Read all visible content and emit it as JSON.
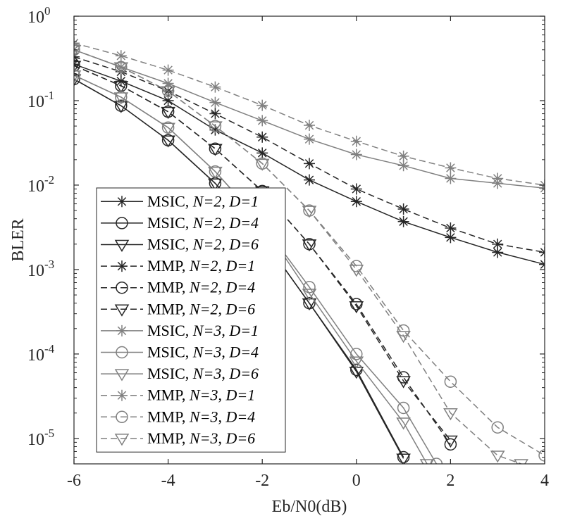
{
  "chart_data": {
    "type": "line",
    "xlabel": "Eb/N0(dB)",
    "ylabel": "BLER",
    "xlim": [
      -6,
      4
    ],
    "ylim": [
      5e-06,
      1
    ],
    "yscale": "log",
    "grid": false,
    "legend_placement": "left-center",
    "x_ticks": [
      {
        "v": -6,
        "label": "-6"
      },
      {
        "v": -4,
        "label": "-4"
      },
      {
        "v": -2,
        "label": "-2"
      },
      {
        "v": 0,
        "label": "0"
      },
      {
        "v": 2,
        "label": "2"
      },
      {
        "v": 4,
        "label": "4"
      }
    ],
    "y_ticks": [
      {
        "v": 1,
        "base": "10",
        "exp": "0"
      },
      {
        "v": 0.1,
        "base": "10",
        "exp": "-1"
      },
      {
        "v": 0.01,
        "base": "10",
        "exp": "-2"
      },
      {
        "v": 0.001,
        "base": "10",
        "exp": "-3"
      },
      {
        "v": 0.0001,
        "base": "10",
        "exp": "-4"
      },
      {
        "v": 1e-05,
        "base": "10",
        "exp": "-5"
      }
    ],
    "series": [
      {
        "name": "MSIC, N=2, D=1",
        "prefix": "MSIC, ",
        "n": "N=2",
        "d": "D=1",
        "color": "#262626",
        "dash": "solid",
        "marker": "asterisk",
        "x": [
          -6,
          -5,
          -4,
          -3,
          -2,
          -1,
          0,
          1,
          2,
          3,
          4
        ],
        "y": [
          0.27,
          0.17,
          0.1,
          0.045,
          0.024,
          0.0115,
          0.0064,
          0.0037,
          0.0024,
          0.0016,
          0.00115
        ]
      },
      {
        "name": "MSIC, N=2, D=4",
        "prefix": "MSIC, ",
        "n": "N=2",
        "d": "D=4",
        "color": "#262626",
        "dash": "solid",
        "marker": "circle",
        "x": [
          -6,
          -5,
          -4,
          -3,
          -2,
          -1,
          0,
          1
        ],
        "y": [
          0.18,
          0.087,
          0.034,
          0.0105,
          0.0024,
          0.0004,
          6.5e-05,
          6e-06
        ]
      },
      {
        "name": "MSIC, N=2, D=6",
        "prefix": "MSIC, ",
        "n": "N=2",
        "d": "D=6",
        "color": "#262626",
        "dash": "solid",
        "marker": "triangle",
        "x": [
          -6,
          -5,
          -4,
          -3,
          -2,
          -1,
          0,
          1
        ],
        "y": [
          0.18,
          0.087,
          0.034,
          0.0105,
          0.0024,
          0.0004,
          6.2e-05,
          5.8e-06
        ]
      },
      {
        "name": "MMP, N=2, D=1",
        "prefix": "MMP, ",
        "n": "N=2",
        "d": "D=1",
        "color": "#262626",
        "dash": "dashed",
        "marker": "asterisk",
        "x": [
          -6,
          -5,
          -4,
          -3,
          -2,
          -1,
          0,
          1,
          2,
          3,
          4
        ],
        "y": [
          0.33,
          0.22,
          0.13,
          0.07,
          0.037,
          0.018,
          0.009,
          0.0052,
          0.0031,
          0.002,
          0.0016
        ]
      },
      {
        "name": "MMP, N=2, D=4",
        "prefix": "MMP, ",
        "n": "N=2",
        "d": "D=4",
        "color": "#262626",
        "dash": "dashed",
        "marker": "circle",
        "x": [
          -6,
          -5,
          -4,
          -3,
          -2,
          -1,
          0,
          1,
          2
        ],
        "y": [
          0.26,
          0.15,
          0.074,
          0.027,
          0.0085,
          0.002,
          0.00039,
          5.3e-05,
          8.5e-06
        ]
      },
      {
        "name": "MMP, N=2, D=6",
        "prefix": "MMP, ",
        "n": "N=2",
        "d": "D=6",
        "color": "#262626",
        "dash": "dashed",
        "marker": "triangle",
        "x": [
          -6,
          -5,
          -4,
          -3,
          -2,
          -1,
          0,
          1,
          2
        ],
        "y": [
          0.26,
          0.15,
          0.074,
          0.027,
          0.0085,
          0.002,
          0.00037,
          4.8e-05,
          9.5e-06
        ]
      },
      {
        "name": "MSIC, N=3, D=1",
        "prefix": "MSIC, ",
        "n": "N=3",
        "d": "D=1",
        "color": "#808080",
        "dash": "solid",
        "marker": "asterisk",
        "x": [
          -6,
          -5,
          -4,
          -3,
          -2,
          -1,
          0,
          1,
          2,
          3,
          4
        ],
        "y": [
          0.4,
          0.25,
          0.16,
          0.095,
          0.058,
          0.035,
          0.023,
          0.017,
          0.012,
          0.0105,
          0.0092
        ]
      },
      {
        "name": "MSIC, N=3, D=4",
        "prefix": "MSIC, ",
        "n": "N=3",
        "d": "D=4",
        "color": "#808080",
        "dash": "solid",
        "marker": "circle",
        "x": [
          -6,
          -5,
          -4,
          -3,
          -2,
          -1,
          0,
          1,
          1.7
        ],
        "y": [
          0.2,
          0.11,
          0.048,
          0.0145,
          0.0035,
          0.00062,
          0.0001,
          2.3e-05,
          5e-06
        ]
      },
      {
        "name": "MSIC, N=3, D=6",
        "prefix": "MSIC, ",
        "n": "N=3",
        "d": "D=6",
        "color": "#808080",
        "dash": "solid",
        "marker": "triangle",
        "x": [
          -6,
          -5,
          -4,
          -3,
          -2,
          -1,
          0,
          1,
          1.5
        ],
        "y": [
          0.2,
          0.11,
          0.048,
          0.0145,
          0.0035,
          0.00052,
          8.2e-05,
          1.55e-05,
          5e-06
        ]
      },
      {
        "name": "MMP, N=3, D=1",
        "prefix": "MMP, ",
        "n": "N=3",
        "d": "D=1",
        "color": "#808080",
        "dash": "dashed",
        "marker": "asterisk",
        "x": [
          -6,
          -5,
          -4,
          -3,
          -2,
          -1,
          0,
          1,
          2,
          3,
          4
        ],
        "y": [
          0.48,
          0.34,
          0.23,
          0.145,
          0.088,
          0.051,
          0.033,
          0.022,
          0.016,
          0.012,
          0.01
        ]
      },
      {
        "name": "MMP, N=3, D=4",
        "prefix": "MMP, ",
        "n": "N=3",
        "d": "D=4",
        "color": "#808080",
        "dash": "dashed",
        "marker": "circle",
        "x": [
          -6,
          -5,
          -4,
          -3,
          -2,
          -1,
          0,
          1,
          2,
          3,
          4
        ],
        "y": [
          0.4,
          0.25,
          0.13,
          0.05,
          0.018,
          0.005,
          0.0011,
          0.00019,
          4.7e-05,
          1.35e-05,
          6.3e-06
        ]
      },
      {
        "name": "MMP, N=3, D=6",
        "prefix": "MMP, ",
        "n": "N=3",
        "d": "D=6",
        "color": "#808080",
        "dash": "dashed",
        "marker": "triangle",
        "x": [
          -6,
          -5,
          -4,
          -3,
          -2,
          -1,
          0,
          1,
          2,
          3,
          3.5
        ],
        "y": [
          0.4,
          0.25,
          0.13,
          0.05,
          0.018,
          0.005,
          0.001,
          0.000165,
          2e-05,
          6.3e-06,
          5e-06
        ]
      }
    ]
  }
}
